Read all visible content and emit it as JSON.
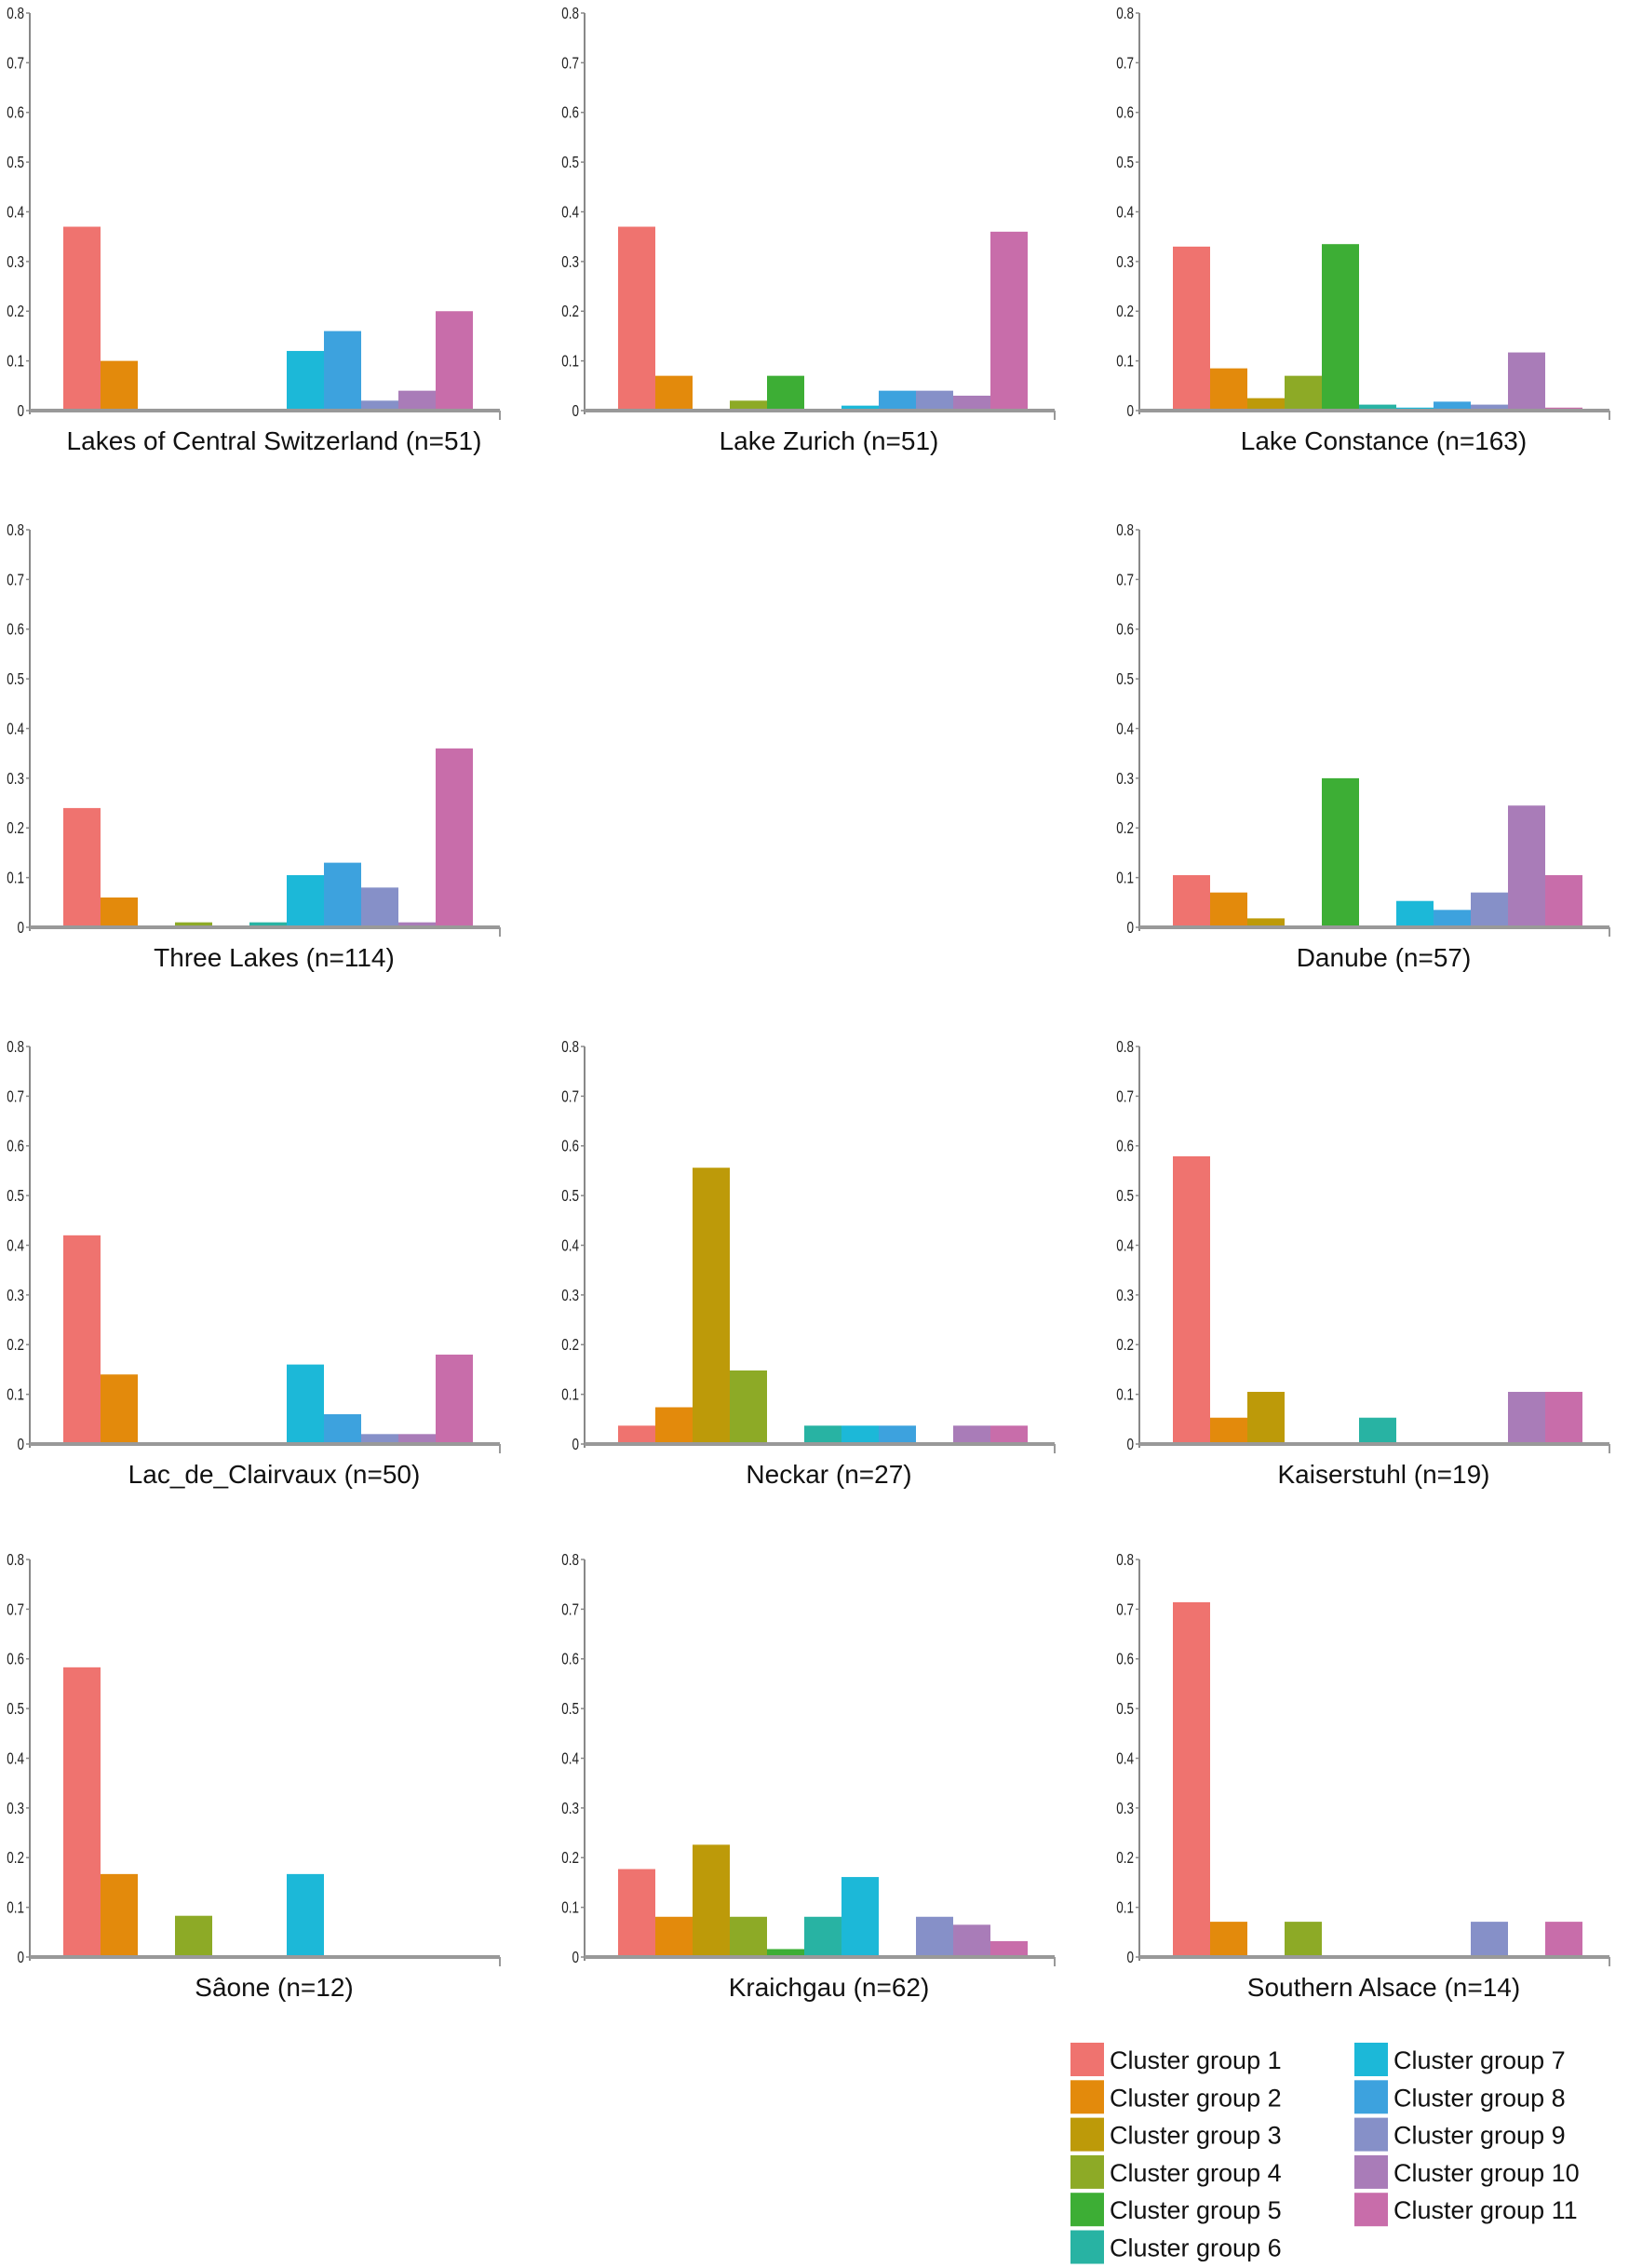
{
  "chart_data": {
    "type": "bar",
    "layout": "4x3 grid of small multiples (middle panel of row 2 empty)",
    "ylim": [
      0,
      0.8
    ],
    "yticks": [
      "0",
      "0.1",
      "0.2",
      "0.3",
      "0.4",
      "0.5",
      "0.6",
      "0.7",
      "0.8"
    ],
    "grid": false,
    "legend_position": "bottom-right",
    "series_names": [
      "Cluster group 1",
      "Cluster group 2",
      "Cluster group 3",
      "Cluster group 4",
      "Cluster group 5",
      "Cluster group 6",
      "Cluster group 7",
      "Cluster group 8",
      "Cluster group 9",
      "Cluster group 10",
      "Cluster group 11"
    ],
    "colors": [
      "#EF736F",
      "#E38A0C",
      "#BD9A09",
      "#8DAA26",
      "#3DAE35",
      "#28B3A3",
      "#1CB8D8",
      "#3DA2DE",
      "#8690C8",
      "#A97CB8",
      "#C86DAA"
    ],
    "panels": [
      {
        "title": "Lakes of Central Switzerland (n=51)",
        "row": 0,
        "col": 0,
        "values": [
          0.37,
          0.1,
          0,
          0,
          0,
          0,
          0.12,
          0.16,
          0.02,
          0.04,
          0.2
        ]
      },
      {
        "title": "Lake Zurich (n=51)",
        "row": 0,
        "col": 1,
        "values": [
          0.37,
          0.07,
          0,
          0.02,
          0.07,
          0,
          0.01,
          0.04,
          0.04,
          0.03,
          0.36
        ]
      },
      {
        "title": "Lake Constance (n=163)",
        "row": 0,
        "col": 2,
        "values": [
          0.33,
          0.085,
          0.025,
          0.07,
          0.335,
          0.012,
          0.006,
          0.018,
          0.012,
          0.117,
          0.006
        ]
      },
      {
        "title": "Three Lakes (n=114)",
        "row": 1,
        "col": 0,
        "values": [
          0.24,
          0.06,
          0,
          0.01,
          0,
          0.01,
          0.105,
          0.13,
          0.08,
          0.01,
          0.36
        ]
      },
      {
        "title": "Danube (n=57)",
        "row": 1,
        "col": 2,
        "values": [
          0.105,
          0.07,
          0.018,
          0,
          0.3,
          0,
          0.053,
          0.035,
          0.07,
          0.245,
          0.105
        ]
      },
      {
        "title": "Lac_de_Clairvaux (n=50)",
        "row": 2,
        "col": 0,
        "values": [
          0.42,
          0.14,
          0,
          0,
          0,
          0,
          0.16,
          0.06,
          0.02,
          0.02,
          0.18
        ]
      },
      {
        "title": "Neckar (n=27)",
        "row": 2,
        "col": 1,
        "values": [
          0.037,
          0.074,
          0.556,
          0.148,
          0,
          0.037,
          0.037,
          0.037,
          0,
          0.037,
          0.037
        ]
      },
      {
        "title": "Kaiserstuhl (n=19)",
        "row": 2,
        "col": 2,
        "values": [
          0.579,
          0.053,
          0.105,
          0,
          0,
          0.053,
          0,
          0,
          0,
          0.105,
          0.105
        ]
      },
      {
        "title": "Sâone (n=12)",
        "row": 3,
        "col": 0,
        "values": [
          0.583,
          0.167,
          0,
          0.083,
          0,
          0,
          0.167,
          0,
          0,
          0,
          0
        ]
      },
      {
        "title": "Kraichgau (n=62)",
        "row": 3,
        "col": 1,
        "values": [
          0.177,
          0.081,
          0.226,
          0.081,
          0.016,
          0.081,
          0.161,
          0,
          0.081,
          0.065,
          0.032
        ]
      },
      {
        "title": "Southern Alsace (n=14)",
        "row": 3,
        "col": 2,
        "values": [
          0.714,
          0.071,
          0,
          0.071,
          0,
          0,
          0,
          0,
          0.071,
          0,
          0.071
        ]
      }
    ]
  }
}
